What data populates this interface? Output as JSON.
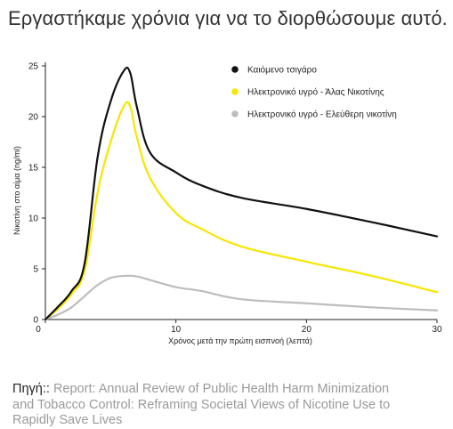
{
  "headline": "Εργαστήκαμε χρόνια για να το διορθώσουμε αυτό.",
  "source": {
    "prefix": "Πηγή:",
    "separator": ": ",
    "link_text": "Report: Annual Review of Public Health Harm Minimization and Tobacco Control: Reframing Societal Views of Nicotine Use to Rapidly Save Lives"
  },
  "chart_data": {
    "type": "line",
    "title": "",
    "xlabel": "Χρόνος μετά την πρώτη εισπνοή (λεπτά)",
    "ylabel": "Νικοτίνη στο αίμα (ng/ml)",
    "xlim": [
      0,
      30
    ],
    "ylim": [
      0,
      25
    ],
    "x_ticks": [
      0,
      10,
      20,
      30
    ],
    "y_ticks": [
      0,
      5,
      10,
      15,
      20,
      25
    ],
    "grid": false,
    "legend_position": "top-right",
    "series": [
      {
        "name": "Καιόμενο τσιγάρο",
        "color": "#111111",
        "x": [
          0,
          1,
          2,
          3,
          4,
          5,
          6,
          6.5,
          7,
          8,
          10,
          12,
          15,
          20,
          25,
          30
        ],
        "y": [
          0,
          1.3,
          2.8,
          5.5,
          16,
          21.5,
          24.5,
          24.3,
          21,
          16.5,
          14.5,
          13.2,
          12,
          10.9,
          9.6,
          8.2
        ]
      },
      {
        "name": "Ηλεκτρονικό υγρό - Άλας Νικοτίνης",
        "color": "#f7e600",
        "x": [
          0,
          1,
          2,
          3,
          4,
          5,
          6,
          6.5,
          7,
          8,
          10,
          12,
          15,
          20,
          25,
          30
        ],
        "y": [
          0,
          1.1,
          2.5,
          4.8,
          12.5,
          17.5,
          21,
          21,
          18,
          14,
          10.5,
          8.9,
          7.2,
          5.7,
          4.3,
          2.7
        ]
      },
      {
        "name": "Ηλεκτρονικό υγρό - Ελεύθερη νικοτίνη",
        "color": "#bdbdbd",
        "x": [
          0,
          1,
          2,
          3,
          4,
          5,
          6,
          7,
          8,
          10,
          12,
          15,
          20,
          25,
          30
        ],
        "y": [
          0,
          0.5,
          1.2,
          2.3,
          3.4,
          4.1,
          4.3,
          4.25,
          3.9,
          3.2,
          2.8,
          2.0,
          1.6,
          1.2,
          0.9
        ]
      }
    ]
  }
}
